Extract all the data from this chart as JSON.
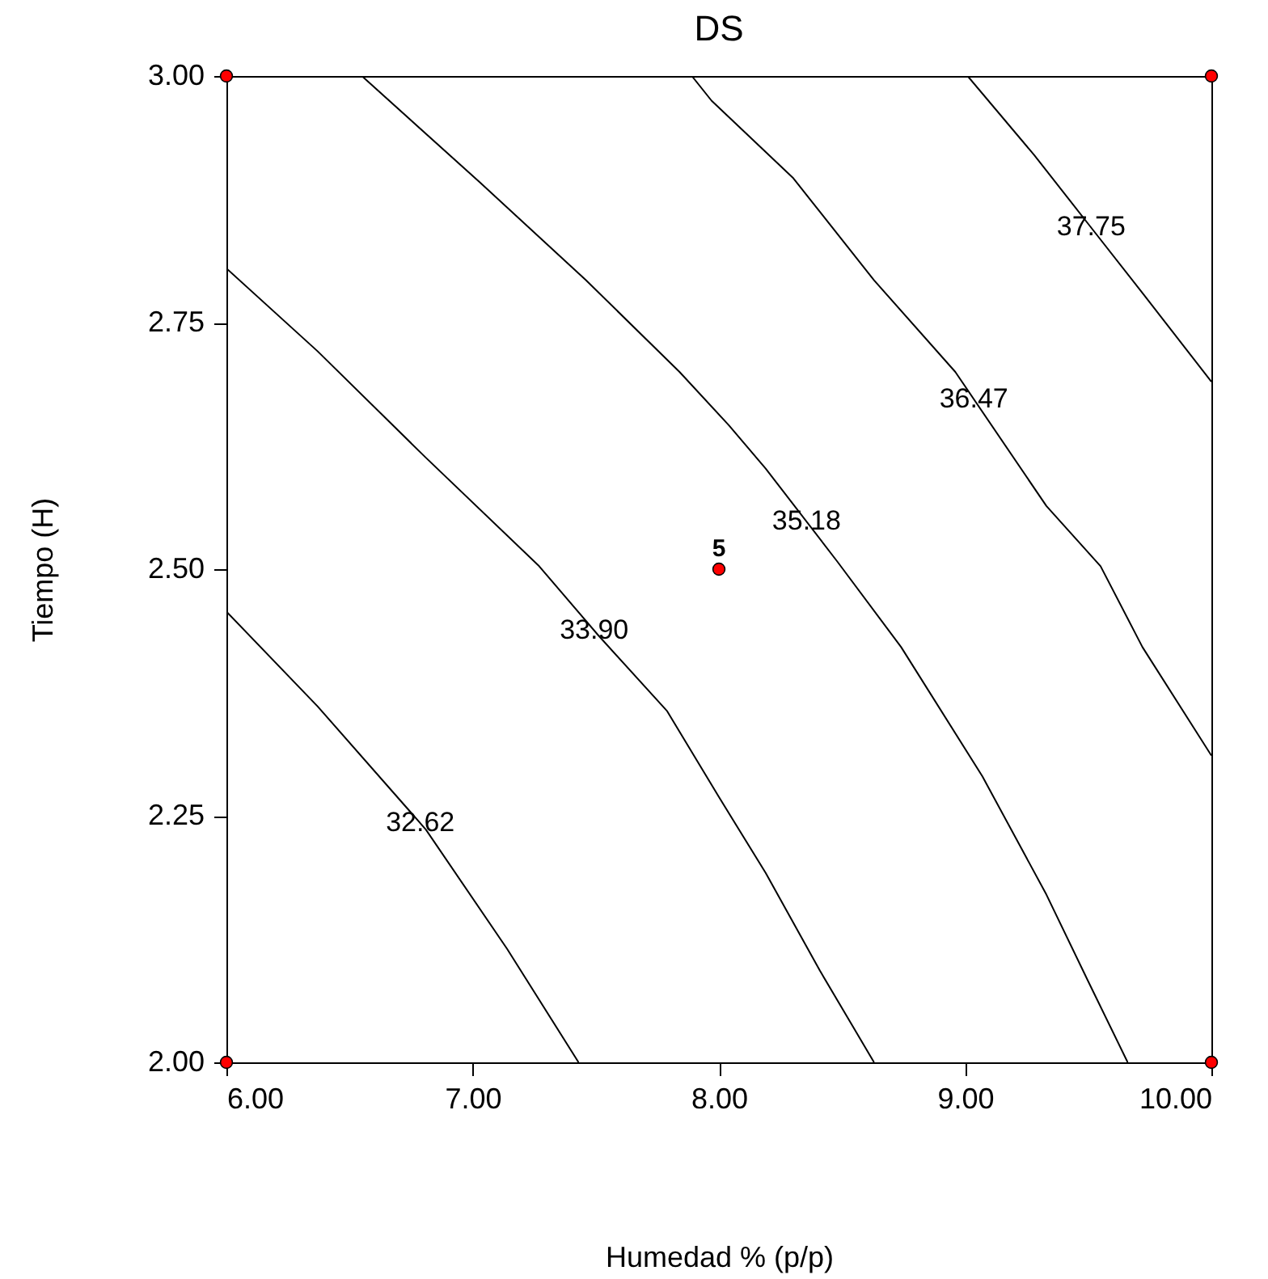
{
  "chart_data": {
    "type": "line",
    "title": "DS",
    "xlabel": "Humedad % (p/p)",
    "ylabel": "Tiempo (H)",
    "xlim": [
      6,
      10
    ],
    "ylim": [
      2,
      3
    ],
    "xticks": [
      {
        "value": 6,
        "label": "6.00"
      },
      {
        "value": 7,
        "label": "7.00"
      },
      {
        "value": 8,
        "label": "8.00"
      },
      {
        "value": 9,
        "label": "9.00"
      },
      {
        "value": 10,
        "label": "10.00"
      }
    ],
    "yticks": [
      {
        "value": 2,
        "label": "2.00"
      },
      {
        "value": 2.25,
        "label": "2.25"
      },
      {
        "value": 2.5,
        "label": "2.50"
      },
      {
        "value": 2.75,
        "label": "2.75"
      },
      {
        "value": 3,
        "label": "3.00"
      }
    ],
    "grid": false,
    "series": [
      {
        "name": "32.62",
        "color": "#000000",
        "x": [
          6.0,
          6.37,
          6.81,
          7.14,
          7.43
        ],
        "values": [
          2.457,
          2.361,
          2.236,
          2.115,
          2.0
        ]
      },
      {
        "name": "33.90",
        "color": "#000000",
        "x": [
          6.0,
          6.37,
          6.81,
          7.27,
          7.51,
          7.79,
          8.0,
          8.19,
          8.41,
          8.63
        ],
        "values": [
          2.805,
          2.721,
          2.613,
          2.503,
          2.433,
          2.356,
          2.269,
          2.192,
          2.093,
          2.0
        ]
      },
      {
        "name": "35.18",
        "color": "#000000",
        "x": [
          6.55,
          7.03,
          7.46,
          7.84,
          8.04,
          8.19,
          8.48,
          8.74,
          9.07,
          9.33,
          9.5,
          9.66
        ],
        "values": [
          3.0,
          2.892,
          2.793,
          2.7,
          2.646,
          2.602,
          2.508,
          2.421,
          2.29,
          2.17,
          2.082,
          2.0
        ]
      },
      {
        "name": "36.47",
        "color": "#000000",
        "x": [
          7.89,
          7.97,
          8.3,
          8.63,
          8.96,
          9.33,
          9.55,
          9.72,
          10.0
        ],
        "values": [
          3.0,
          2.975,
          2.897,
          2.793,
          2.7,
          2.564,
          2.503,
          2.421,
          2.311
        ]
      },
      {
        "name": "37.75",
        "color": "#000000",
        "x": [
          9.01,
          9.28,
          9.5,
          9.72,
          10.0
        ],
        "values": [
          3.0,
          2.92,
          2.85,
          2.78,
          2.69
        ]
      },
      {
        "type": "scatter",
        "color": "#ff0000",
        "marker": "circle",
        "x": [
          6,
          10,
          8,
          6,
          10
        ],
        "values": [
          3,
          3,
          2.5,
          2,
          2
        ]
      }
    ],
    "annotations": [
      {
        "text": "5",
        "x": 8,
        "y": 2.5
      }
    ]
  }
}
